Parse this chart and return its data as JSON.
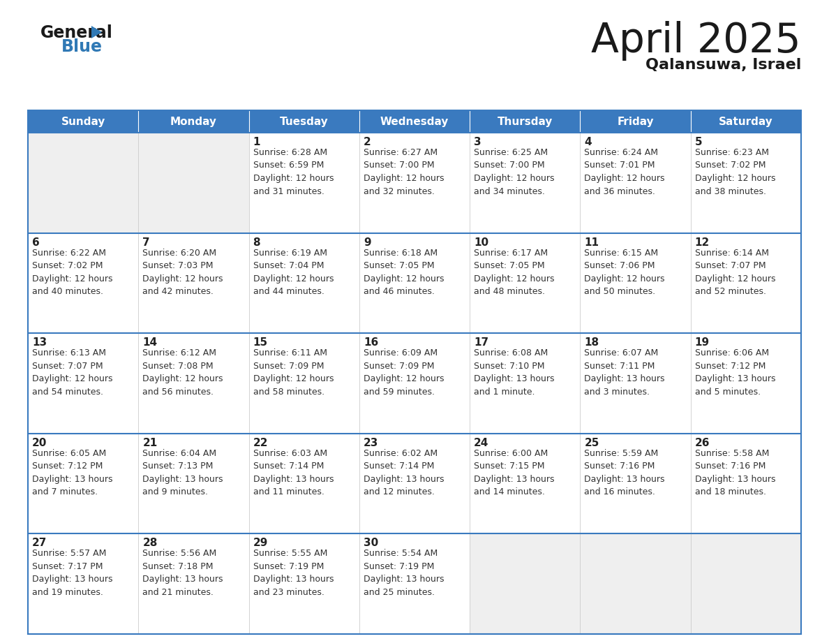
{
  "title": "April 2025",
  "subtitle": "Qalansuwa, Israel",
  "header_bg": "#3a7abf",
  "header_text_color": "#ffffff",
  "cell_bg_empty": "#efefef",
  "cell_bg_filled": "#ffffff",
  "border_color": "#3a7abf",
  "grid_color": "#cccccc",
  "text_color": "#222222",
  "info_color": "#333333",
  "day_names": [
    "Sunday",
    "Monday",
    "Tuesday",
    "Wednesday",
    "Thursday",
    "Friday",
    "Saturday"
  ],
  "weeks": [
    [
      {
        "day": null,
        "info": null
      },
      {
        "day": null,
        "info": null
      },
      {
        "day": 1,
        "info": "Sunrise: 6:28 AM\nSunset: 6:59 PM\nDaylight: 12 hours\nand 31 minutes."
      },
      {
        "day": 2,
        "info": "Sunrise: 6:27 AM\nSunset: 7:00 PM\nDaylight: 12 hours\nand 32 minutes."
      },
      {
        "day": 3,
        "info": "Sunrise: 6:25 AM\nSunset: 7:00 PM\nDaylight: 12 hours\nand 34 minutes."
      },
      {
        "day": 4,
        "info": "Sunrise: 6:24 AM\nSunset: 7:01 PM\nDaylight: 12 hours\nand 36 minutes."
      },
      {
        "day": 5,
        "info": "Sunrise: 6:23 AM\nSunset: 7:02 PM\nDaylight: 12 hours\nand 38 minutes."
      }
    ],
    [
      {
        "day": 6,
        "info": "Sunrise: 6:22 AM\nSunset: 7:02 PM\nDaylight: 12 hours\nand 40 minutes."
      },
      {
        "day": 7,
        "info": "Sunrise: 6:20 AM\nSunset: 7:03 PM\nDaylight: 12 hours\nand 42 minutes."
      },
      {
        "day": 8,
        "info": "Sunrise: 6:19 AM\nSunset: 7:04 PM\nDaylight: 12 hours\nand 44 minutes."
      },
      {
        "day": 9,
        "info": "Sunrise: 6:18 AM\nSunset: 7:05 PM\nDaylight: 12 hours\nand 46 minutes."
      },
      {
        "day": 10,
        "info": "Sunrise: 6:17 AM\nSunset: 7:05 PM\nDaylight: 12 hours\nand 48 minutes."
      },
      {
        "day": 11,
        "info": "Sunrise: 6:15 AM\nSunset: 7:06 PM\nDaylight: 12 hours\nand 50 minutes."
      },
      {
        "day": 12,
        "info": "Sunrise: 6:14 AM\nSunset: 7:07 PM\nDaylight: 12 hours\nand 52 minutes."
      }
    ],
    [
      {
        "day": 13,
        "info": "Sunrise: 6:13 AM\nSunset: 7:07 PM\nDaylight: 12 hours\nand 54 minutes."
      },
      {
        "day": 14,
        "info": "Sunrise: 6:12 AM\nSunset: 7:08 PM\nDaylight: 12 hours\nand 56 minutes."
      },
      {
        "day": 15,
        "info": "Sunrise: 6:11 AM\nSunset: 7:09 PM\nDaylight: 12 hours\nand 58 minutes."
      },
      {
        "day": 16,
        "info": "Sunrise: 6:09 AM\nSunset: 7:09 PM\nDaylight: 12 hours\nand 59 minutes."
      },
      {
        "day": 17,
        "info": "Sunrise: 6:08 AM\nSunset: 7:10 PM\nDaylight: 13 hours\nand 1 minute."
      },
      {
        "day": 18,
        "info": "Sunrise: 6:07 AM\nSunset: 7:11 PM\nDaylight: 13 hours\nand 3 minutes."
      },
      {
        "day": 19,
        "info": "Sunrise: 6:06 AM\nSunset: 7:12 PM\nDaylight: 13 hours\nand 5 minutes."
      }
    ],
    [
      {
        "day": 20,
        "info": "Sunrise: 6:05 AM\nSunset: 7:12 PM\nDaylight: 13 hours\nand 7 minutes."
      },
      {
        "day": 21,
        "info": "Sunrise: 6:04 AM\nSunset: 7:13 PM\nDaylight: 13 hours\nand 9 minutes."
      },
      {
        "day": 22,
        "info": "Sunrise: 6:03 AM\nSunset: 7:14 PM\nDaylight: 13 hours\nand 11 minutes."
      },
      {
        "day": 23,
        "info": "Sunrise: 6:02 AM\nSunset: 7:14 PM\nDaylight: 13 hours\nand 12 minutes."
      },
      {
        "day": 24,
        "info": "Sunrise: 6:00 AM\nSunset: 7:15 PM\nDaylight: 13 hours\nand 14 minutes."
      },
      {
        "day": 25,
        "info": "Sunrise: 5:59 AM\nSunset: 7:16 PM\nDaylight: 13 hours\nand 16 minutes."
      },
      {
        "day": 26,
        "info": "Sunrise: 5:58 AM\nSunset: 7:16 PM\nDaylight: 13 hours\nand 18 minutes."
      }
    ],
    [
      {
        "day": 27,
        "info": "Sunrise: 5:57 AM\nSunset: 7:17 PM\nDaylight: 13 hours\nand 19 minutes."
      },
      {
        "day": 28,
        "info": "Sunrise: 5:56 AM\nSunset: 7:18 PM\nDaylight: 13 hours\nand 21 minutes."
      },
      {
        "day": 29,
        "info": "Sunrise: 5:55 AM\nSunset: 7:19 PM\nDaylight: 13 hours\nand 23 minutes."
      },
      {
        "day": 30,
        "info": "Sunrise: 5:54 AM\nSunset: 7:19 PM\nDaylight: 13 hours\nand 25 minutes."
      },
      {
        "day": null,
        "info": null
      },
      {
        "day": null,
        "info": null
      },
      {
        "day": null,
        "info": null
      }
    ]
  ],
  "logo_general_color": "#1a1a1a",
  "logo_blue_color": "#3079b5",
  "logo_triangle_color": "#3079b5",
  "title_color": "#1a1a1a",
  "subtitle_color": "#1a1a1a",
  "title_fontsize": 42,
  "subtitle_fontsize": 16,
  "header_fontsize": 11,
  "day_num_fontsize": 11,
  "info_fontsize": 9,
  "logo_general_fontsize": 17,
  "logo_blue_fontsize": 17
}
